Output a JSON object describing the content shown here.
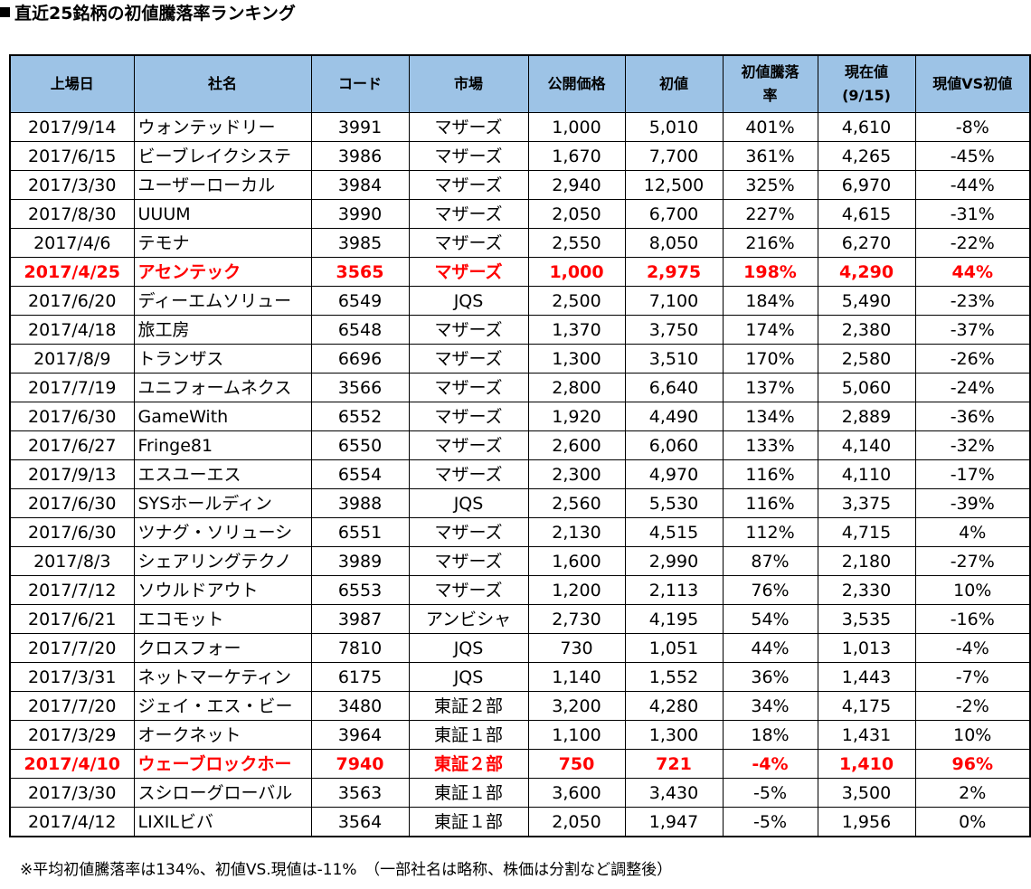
{
  "title": "直近25銘柄の初値騰落率ランキング",
  "header": {
    "date": "上場日",
    "name": "社名",
    "code": "コード",
    "market": "市場",
    "offer": "公開価格",
    "initial": "初値",
    "rate_line1": "初値騰落",
    "rate_line2": "率",
    "current_line1": "現在値",
    "current_line2": "(9/15)",
    "vs": "現値VS初値"
  },
  "rows": [
    {
      "date": "2017/9/14",
      "name": "ウォンテッドリー",
      "code": "3991",
      "market": "マザーズ",
      "offer": "1,000",
      "initial": "5,010",
      "rate": "401%",
      "current": "4,610",
      "vs": "-8%",
      "highlight": false
    },
    {
      "date": "2017/6/15",
      "name": "ビーブレイクシステ",
      "code": "3986",
      "market": "マザーズ",
      "offer": "1,670",
      "initial": "7,700",
      "rate": "361%",
      "current": "4,265",
      "vs": "-45%",
      "highlight": false
    },
    {
      "date": "2017/3/30",
      "name": "ユーザーローカル",
      "code": "3984",
      "market": "マザーズ",
      "offer": "2,940",
      "initial": "12,500",
      "rate": "325%",
      "current": "6,970",
      "vs": "-44%",
      "highlight": false
    },
    {
      "date": "2017/8/30",
      "name": "UUUM",
      "code": "3990",
      "market": "マザーズ",
      "offer": "2,050",
      "initial": "6,700",
      "rate": "227%",
      "current": "4,615",
      "vs": "-31%",
      "highlight": false
    },
    {
      "date": "2017/4/6",
      "name": "テモナ",
      "code": "3985",
      "market": "マザーズ",
      "offer": "2,550",
      "initial": "8,050",
      "rate": "216%",
      "current": "6,270",
      "vs": "-22%",
      "highlight": false
    },
    {
      "date": "2017/4/25",
      "name": "アセンテック",
      "code": "3565",
      "market": "マザーズ",
      "offer": "1,000",
      "initial": "2,975",
      "rate": "198%",
      "current": "4,290",
      "vs": "44%",
      "highlight": true
    },
    {
      "date": "2017/6/20",
      "name": "ディーエムソリュー",
      "code": "6549",
      "market": "JQS",
      "offer": "2,500",
      "initial": "7,100",
      "rate": "184%",
      "current": "5,490",
      "vs": "-23%",
      "highlight": false
    },
    {
      "date": "2017/4/18",
      "name": "旅工房",
      "code": "6548",
      "market": "マザーズ",
      "offer": "1,370",
      "initial": "3,750",
      "rate": "174%",
      "current": "2,380",
      "vs": "-37%",
      "highlight": false
    },
    {
      "date": "2017/8/9",
      "name": "トランザス",
      "code": "6696",
      "market": "マザーズ",
      "offer": "1,300",
      "initial": "3,510",
      "rate": "170%",
      "current": "2,580",
      "vs": "-26%",
      "highlight": false
    },
    {
      "date": "2017/7/19",
      "name": "ユニフォームネクス",
      "code": "3566",
      "market": "マザーズ",
      "offer": "2,800",
      "initial": "6,640",
      "rate": "137%",
      "current": "5,060",
      "vs": "-24%",
      "highlight": false
    },
    {
      "date": "2017/6/30",
      "name": "GameWith",
      "code": "6552",
      "market": "マザーズ",
      "offer": "1,920",
      "initial": "4,490",
      "rate": "134%",
      "current": "2,889",
      "vs": "-36%",
      "highlight": false
    },
    {
      "date": "2017/6/27",
      "name": "Fringe81",
      "code": "6550",
      "market": "マザーズ",
      "offer": "2,600",
      "initial": "6,060",
      "rate": "133%",
      "current": "4,140",
      "vs": "-32%",
      "highlight": false
    },
    {
      "date": "2017/9/13",
      "name": "エスユーエス",
      "code": "6554",
      "market": "マザーズ",
      "offer": "2,300",
      "initial": "4,970",
      "rate": "116%",
      "current": "4,110",
      "vs": "-17%",
      "highlight": false
    },
    {
      "date": "2017/6/30",
      "name": "SYSホールディン",
      "code": "3988",
      "market": "JQS",
      "offer": "2,560",
      "initial": "5,530",
      "rate": "116%",
      "current": "3,375",
      "vs": "-39%",
      "highlight": false
    },
    {
      "date": "2017/6/30",
      "name": "ツナグ・ソリューシ",
      "code": "6551",
      "market": "マザーズ",
      "offer": "2,130",
      "initial": "4,515",
      "rate": "112%",
      "current": "4,715",
      "vs": "4%",
      "highlight": false
    },
    {
      "date": "2017/8/3",
      "name": "シェアリングテクノ",
      "code": "3989",
      "market": "マザーズ",
      "offer": "1,600",
      "initial": "2,990",
      "rate": "87%",
      "current": "2,180",
      "vs": "-27%",
      "highlight": false
    },
    {
      "date": "2017/7/12",
      "name": "ソウルドアウト",
      "code": "6553",
      "market": "マザーズ",
      "offer": "1,200",
      "initial": "2,113",
      "rate": "76%",
      "current": "2,330",
      "vs": "10%",
      "highlight": false
    },
    {
      "date": "2017/6/21",
      "name": "エコモット",
      "code": "3987",
      "market": "アンビシャ",
      "offer": "2,730",
      "initial": "4,195",
      "rate": "54%",
      "current": "3,535",
      "vs": "-16%",
      "highlight": false
    },
    {
      "date": "2017/7/20",
      "name": "クロスフォー",
      "code": "7810",
      "market": "JQS",
      "offer": "730",
      "initial": "1,051",
      "rate": "44%",
      "current": "1,013",
      "vs": "-4%",
      "highlight": false
    },
    {
      "date": "2017/3/31",
      "name": "ネットマーケティン",
      "code": "6175",
      "market": "JQS",
      "offer": "1,140",
      "initial": "1,552",
      "rate": "36%",
      "current": "1,443",
      "vs": "-7%",
      "highlight": false
    },
    {
      "date": "2017/7/20",
      "name": "ジェイ・エス・ビー",
      "code": "3480",
      "market": "東証２部",
      "offer": "3,200",
      "initial": "4,280",
      "rate": "34%",
      "current": "4,175",
      "vs": "-2%",
      "highlight": false
    },
    {
      "date": "2017/3/29",
      "name": "オークネット",
      "code": "3964",
      "market": "東証１部",
      "offer": "1,100",
      "initial": "1,300",
      "rate": "18%",
      "current": "1,431",
      "vs": "10%",
      "highlight": false
    },
    {
      "date": "2017/4/10",
      "name": "ウェーブロックホー",
      "code": "7940",
      "market": "東証２部",
      "offer": "750",
      "initial": "721",
      "rate": "-4%",
      "current": "1,410",
      "vs": "96%",
      "highlight": true
    },
    {
      "date": "2017/3/30",
      "name": "スシローグローバル",
      "code": "3563",
      "market": "東証１部",
      "offer": "3,600",
      "initial": "3,430",
      "rate": "-5%",
      "current": "3,500",
      "vs": "2%",
      "highlight": false
    },
    {
      "date": "2017/4/12",
      "name": "LIXILビバ",
      "code": "3564",
      "market": "東証１部",
      "offer": "2,050",
      "initial": "1,947",
      "rate": "-5%",
      "current": "1,956",
      "vs": "0%",
      "highlight": false
    }
  ],
  "note": "※平均初値騰落率は134%、初値VS.現値は-11%　（一部社名は略称、株価は分割など調整後）"
}
